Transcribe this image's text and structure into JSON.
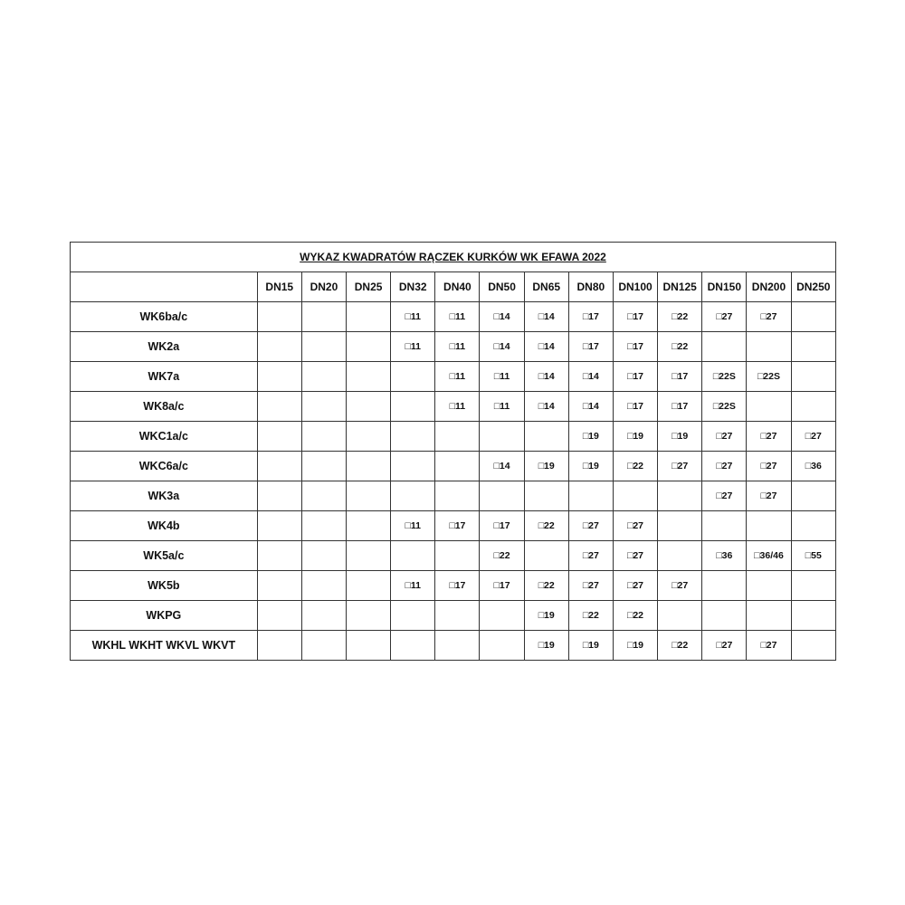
{
  "title": "WYKAZ KWADRATÓW RĄCZEK KURKÓW WK EFAWA 2022",
  "columns": [
    "DN15",
    "DN20",
    "DN25",
    "DN32",
    "DN40",
    "DN50",
    "DN65",
    "DN80",
    "DN100",
    "DN125",
    "DN150",
    "DN200",
    "DN250"
  ],
  "rows": [
    {
      "label": "WK6ba/c",
      "values": [
        "",
        "",
        "",
        "□11",
        "□11",
        "□14",
        "□14",
        "□17",
        "□17",
        "□22",
        "□27",
        "□27",
        ""
      ]
    },
    {
      "label": "WK2a",
      "values": [
        "",
        "",
        "",
        "□11",
        "□11",
        "□14",
        "□14",
        "□17",
        "□17",
        "□22",
        "",
        "",
        ""
      ]
    },
    {
      "label": "WK7a",
      "values": [
        "",
        "",
        "",
        "",
        "□11",
        "□11",
        "□14",
        "□14",
        "□17",
        "□17",
        "□22S",
        "□22S",
        ""
      ]
    },
    {
      "label": "WK8a/c",
      "values": [
        "",
        "",
        "",
        "",
        "□11",
        "□11",
        "□14",
        "□14",
        "□17",
        "□17",
        "□22S",
        "",
        ""
      ]
    },
    {
      "label": "WKC1a/c",
      "values": [
        "",
        "",
        "",
        "",
        "",
        "",
        "",
        "□19",
        "□19",
        "□19",
        "□27",
        "□27",
        "□27"
      ]
    },
    {
      "label": "WKC6a/c",
      "values": [
        "",
        "",
        "",
        "",
        "",
        "□14",
        "□19",
        "□19",
        "□22",
        "□27",
        "□27",
        "□27",
        "□36"
      ]
    },
    {
      "label": "WK3a",
      "values": [
        "",
        "",
        "",
        "",
        "",
        "",
        "",
        "",
        "",
        "",
        "□27",
        "□27",
        ""
      ]
    },
    {
      "label": "WK4b",
      "values": [
        "",
        "",
        "",
        "□11",
        "□17",
        "□17",
        "□22",
        "□27",
        "□27",
        "",
        "",
        "",
        ""
      ]
    },
    {
      "label": "WK5a/c",
      "values": [
        "",
        "",
        "",
        "",
        "",
        "□22",
        "",
        "□27",
        "□27",
        "",
        "□36",
        "□36/46",
        "□55"
      ]
    },
    {
      "label": "WK5b",
      "values": [
        "",
        "",
        "",
        "□11",
        "□17",
        "□17",
        "□22",
        "□27",
        "□27",
        "□27",
        "",
        "",
        ""
      ]
    },
    {
      "label": "WKPG",
      "values": [
        "",
        "",
        "",
        "",
        "",
        "",
        "□19",
        "□22",
        "□22",
        "",
        "",
        "",
        ""
      ]
    },
    {
      "label": "WKHL WKHT WKVL WKVT",
      "values": [
        "",
        "",
        "",
        "",
        "",
        "",
        "□19",
        "□19",
        "□19",
        "□22",
        "□27",
        "□27",
        ""
      ]
    }
  ]
}
